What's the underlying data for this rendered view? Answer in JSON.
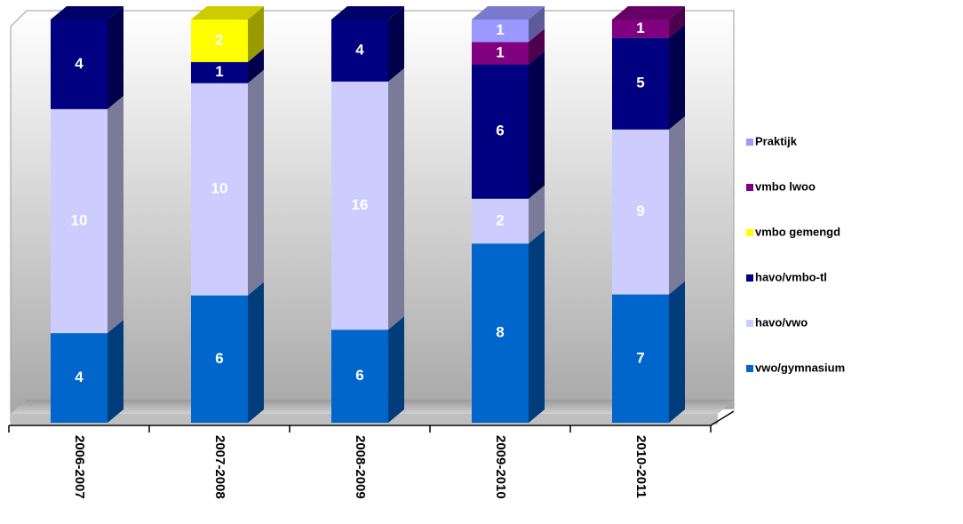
{
  "chart_data": {
    "type": "bar",
    "stacked": "percent",
    "categories": [
      "2006-2007",
      "2007-2008",
      "2008-2009",
      "2009-2010",
      "2010-2011"
    ],
    "series": [
      {
        "name": "vwo/gymnasium",
        "color": "#0066cc",
        "values": [
          4,
          6,
          6,
          8,
          7
        ]
      },
      {
        "name": "havo/vwo",
        "color": "#ccccff",
        "values": [
          10,
          10,
          16,
          2,
          9
        ]
      },
      {
        "name": "havo/vmbo-tl",
        "color": "#000080",
        "values": [
          4,
          1,
          4,
          6,
          5
        ]
      },
      {
        "name": "vmbo gemengd",
        "color": "#ffff00",
        "values": [
          null,
          2,
          null,
          null,
          null
        ]
      },
      {
        "name": "vmbo lwoo",
        "color": "#800080",
        "values": [
          null,
          null,
          null,
          1,
          1
        ]
      },
      {
        "name": "Praktijk",
        "color": "#9999ff",
        "values": [
          null,
          null,
          null,
          1,
          null
        ]
      }
    ],
    "legend": "right"
  }
}
